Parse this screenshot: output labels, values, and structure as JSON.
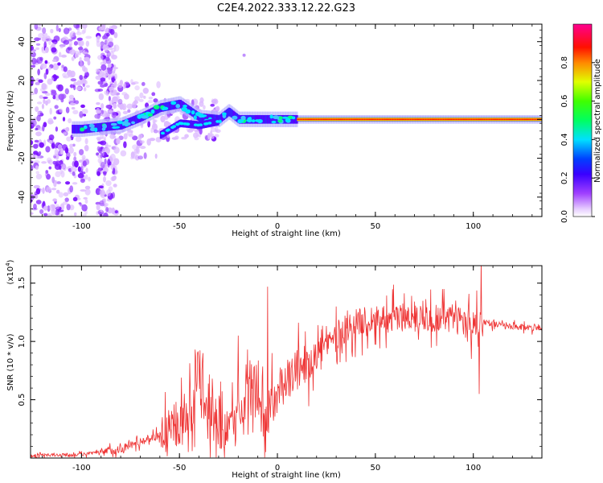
{
  "title": "C2E4.2022.333.12.22.G23",
  "chart_data": [
    {
      "type": "heatmap",
      "xlabel": "Height of straight line (km)",
      "ylabel": "Frequency (Hz)",
      "xlim": [
        -126,
        135
      ],
      "ylim": [
        -50,
        49
      ],
      "xticks": [
        -100,
        -50,
        0,
        50,
        100
      ],
      "yticks": [
        -40,
        -20,
        0,
        20,
        40
      ],
      "colorbar": {
        "label": "Normalized spectral amplitude",
        "range": [
          0,
          1
        ],
        "ticks": [
          "0.0",
          "0.2",
          "0.4",
          "0.6",
          "0.8"
        ],
        "colors": [
          "#ffffff",
          "#d9a8ff",
          "#8800ff",
          "#0000ff",
          "#00ffff",
          "#00ff00",
          "#ffff00",
          "#ff8800",
          "#ff0000",
          "#ff00aa"
        ]
      },
      "ridge": {
        "description_points": [
          {
            "x": -100,
            "y": -5
          },
          {
            "x": -80,
            "y": -3
          },
          {
            "x": -70,
            "y": 1
          },
          {
            "x": -60,
            "y": 6
          },
          {
            "x": -50,
            "y": 8
          },
          {
            "x": -40,
            "y": 1
          },
          {
            "x": -30,
            "y": 0
          },
          {
            "x": -25,
            "y": 4
          },
          {
            "x": -20,
            "y": 0
          },
          {
            "x": -10,
            "y": 0
          },
          {
            "x": 0,
            "y": 0
          },
          {
            "x": 10,
            "y": 0
          },
          {
            "x": 135,
            "y": 0
          }
        ]
      },
      "ridge_lower": [
        {
          "x": -60,
          "y": -8
        },
        {
          "x": -50,
          "y": -2
        },
        {
          "x": -40,
          "y": -3
        },
        {
          "x": -30,
          "y": -1
        }
      ]
    },
    {
      "type": "line",
      "xlabel": "Height of straight line (km)",
      "ylabel": "SNR (10 * v/v)",
      "yscale_label": "(x10",
      "yscale_exp": "4",
      "yscale_close": ")",
      "xlim": [
        -126,
        135
      ],
      "ylim": [
        0,
        1.65
      ],
      "xticks": [
        -100,
        -50,
        0,
        50,
        100
      ],
      "yticks": [
        0.5,
        1.0,
        1.5
      ],
      "ytick_labels": [
        "0.5",
        "1.0",
        "1.5"
      ],
      "color": "#ee3333",
      "envelope": [
        {
          "x": -126,
          "y": 0.02
        },
        {
          "x": -100,
          "y": 0.03
        },
        {
          "x": -90,
          "y": 0.05
        },
        {
          "x": -80,
          "y": 0.08
        },
        {
          "x": -70,
          "y": 0.14
        },
        {
          "x": -60,
          "y": 0.2
        },
        {
          "x": -50,
          "y": 0.28
        },
        {
          "x": -45,
          "y": 0.4
        },
        {
          "x": -40,
          "y": 0.55
        },
        {
          "x": -35,
          "y": 0.3
        },
        {
          "x": -30,
          "y": 0.2
        },
        {
          "x": -20,
          "y": 0.35
        },
        {
          "x": -15,
          "y": 0.55
        },
        {
          "x": -10,
          "y": 0.45
        },
        {
          "x": -5,
          "y": 0.35
        },
        {
          "x": 0,
          "y": 0.55
        },
        {
          "x": 10,
          "y": 0.75
        },
        {
          "x": 20,
          "y": 0.9
        },
        {
          "x": 30,
          "y": 1.05
        },
        {
          "x": 40,
          "y": 1.15
        },
        {
          "x": 50,
          "y": 1.2
        },
        {
          "x": 60,
          "y": 1.2
        },
        {
          "x": 70,
          "y": 1.22
        },
        {
          "x": 80,
          "y": 1.2
        },
        {
          "x": 90,
          "y": 1.2
        },
        {
          "x": 100,
          "y": 1.15
        },
        {
          "x": 105,
          "y": 1.17
        },
        {
          "x": 110,
          "y": 1.15
        },
        {
          "x": 120,
          "y": 1.12
        },
        {
          "x": 135,
          "y": 1.12
        }
      ],
      "peaks": [
        {
          "x": -42,
          "y": 0.93
        },
        {
          "x": -38,
          "y": 0.9
        },
        {
          "x": -20,
          "y": 1.05
        },
        {
          "x": -5,
          "y": 1.47
        },
        {
          "x": 30,
          "y": 1.3
        },
        {
          "x": 85,
          "y": 1.45
        },
        {
          "x": 91,
          "y": 1.35
        },
        {
          "x": 103,
          "y": 1.6
        },
        {
          "x": 104,
          "y": 1.7
        }
      ],
      "dips": [
        {
          "x": 103,
          "y": 0.55
        },
        {
          "x": 99,
          "y": 0.85
        }
      ]
    }
  ]
}
